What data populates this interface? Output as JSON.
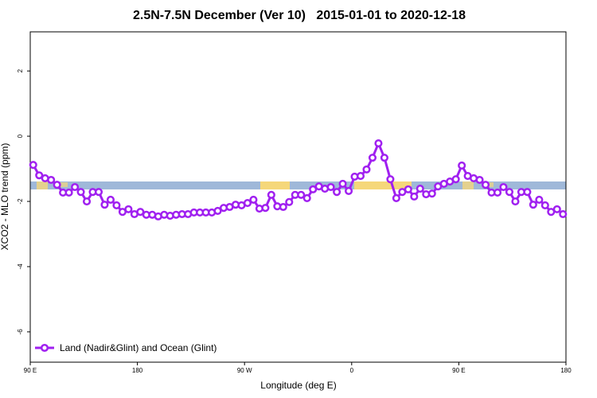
{
  "chart_data": {
    "type": "line",
    "title": "2.5N-7.5N December (Ver 10)   2015-01-01 to 2020-12-18",
    "xlabel": "Longitude (deg E)",
    "ylabel": "XCO2 - MLO trend (ppm)",
    "x": [
      92.5,
      97.5,
      102.5,
      107.5,
      112.5,
      117.5,
      122.5,
      127.5,
      132.5,
      137.5,
      142.5,
      147.5,
      152.5,
      157.5,
      162.5,
      167.5,
      172.5,
      177.5,
      182.5,
      187.5,
      192.5,
      197.5,
      202.5,
      207.5,
      212.5,
      217.5,
      222.5,
      227.5,
      232.5,
      237.5,
      242.5,
      247.5,
      252.5,
      257.5,
      262.5,
      267.5,
      272.5,
      277.5,
      282.5,
      287.5,
      292.5,
      297.5,
      302.5,
      307.5,
      312.5,
      317.5,
      322.5,
      327.5,
      332.5,
      337.5,
      342.5,
      347.5,
      352.5,
      357.5,
      362.5,
      367.5,
      372.5,
      377.5,
      382.5,
      387.5,
      392.5,
      397.5,
      402.5,
      407.5,
      412.5,
      417.5,
      422.5,
      427.5,
      432.5,
      437.5,
      442.5,
      447.5,
      452.5,
      457.5,
      462.5,
      467.5,
      472.5,
      477.5,
      482.5,
      487.5,
      492.5,
      497.5,
      502.5,
      507.5,
      512.5,
      517.5,
      522.5,
      527.5,
      532.5,
      537.5
    ],
    "series": [
      {
        "name": "Land (Nadir&Glint) and Ocean (Glint)",
        "color": "#a020f0",
        "values": [
          -0.88,
          -1.2,
          -1.29,
          -1.34,
          -1.49,
          -1.73,
          -1.73,
          -1.56,
          -1.71,
          -2.0,
          -1.71,
          -1.71,
          -2.1,
          -1.95,
          -2.12,
          -2.32,
          -2.24,
          -2.39,
          -2.32,
          -2.41,
          -2.41,
          -2.46,
          -2.41,
          -2.44,
          -2.41,
          -2.39,
          -2.39,
          -2.34,
          -2.34,
          -2.34,
          -2.34,
          -2.29,
          -2.2,
          -2.17,
          -2.1,
          -2.12,
          -2.05,
          -1.95,
          -2.22,
          -2.2,
          -1.8,
          -2.15,
          -2.17,
          -2.02,
          -1.8,
          -1.8,
          -1.9,
          -1.63,
          -1.54,
          -1.61,
          -1.56,
          -1.71,
          -1.46,
          -1.68,
          -1.24,
          -1.22,
          -1.02,
          -0.66,
          -0.22,
          -0.66,
          -1.32,
          -1.9,
          -1.71,
          -1.63,
          -1.85,
          -1.61,
          -1.78,
          -1.76,
          -1.54,
          -1.46,
          -1.39,
          -1.32,
          -0.9,
          -1.22,
          -1.29,
          -1.34,
          -1.49,
          -1.73,
          -1.73,
          -1.56,
          -1.71,
          -2.0,
          -1.71,
          -1.71,
          -2.1,
          -1.95,
          -2.12,
          -2.32,
          -2.24,
          -2.39
        ]
      }
    ],
    "xlim": [
      90,
      540
    ],
    "xticks": [
      {
        "value": 90,
        "label": "90 E"
      },
      {
        "value": 180,
        "label": "180"
      },
      {
        "value": 270,
        "label": "90 W"
      },
      {
        "value": 360,
        "label": "0"
      },
      {
        "value": 450,
        "label": "90 E"
      },
      {
        "value": 540,
        "label": "180"
      }
    ],
    "ylim": [
      -6.93,
      3.2
    ],
    "yticks": [
      -6,
      -4,
      -2,
      0,
      2
    ],
    "legend": "bottom-left"
  }
}
